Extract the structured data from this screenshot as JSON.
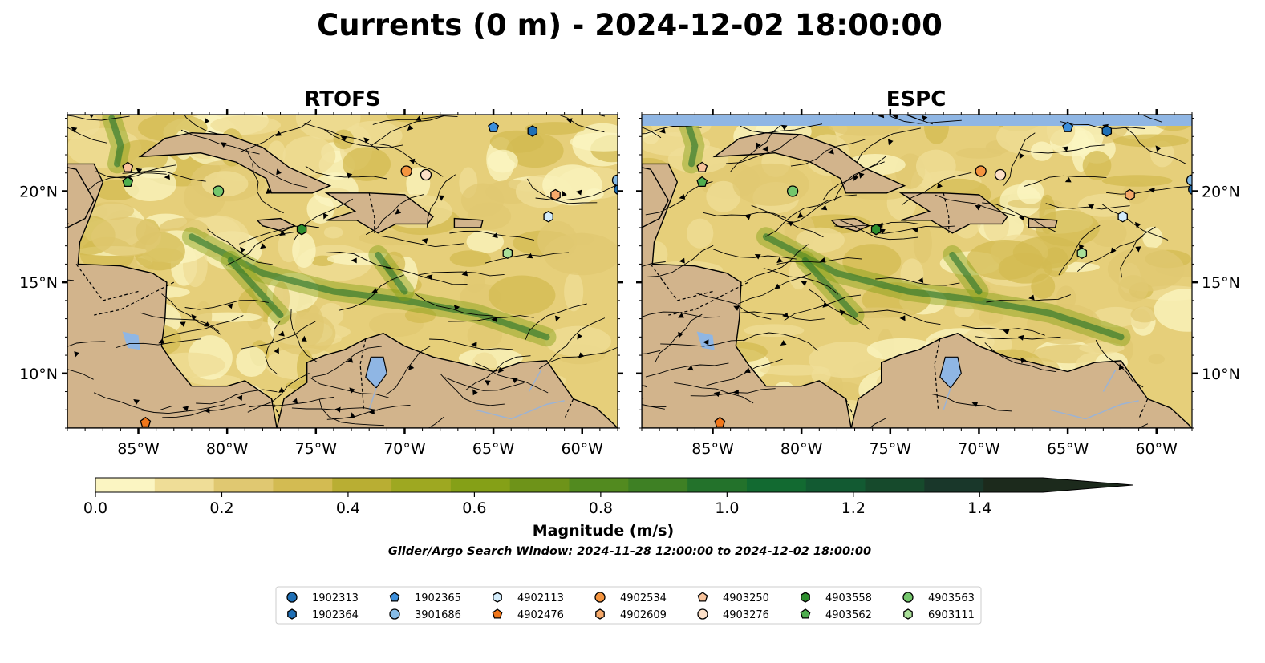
{
  "title": "Currents (0 m) - 2024-12-02 18:00:00",
  "panels": [
    {
      "id": "rtofs",
      "title": "RTOFS",
      "lat_labels_side": "left"
    },
    {
      "id": "espc",
      "title": "ESPC",
      "lat_labels_side": "right"
    }
  ],
  "map_extent": {
    "lon": [
      -89,
      -58
    ],
    "lat": [
      7,
      24.2
    ]
  },
  "lon_ticks": [
    {
      "value": -85,
      "label": "85°W"
    },
    {
      "value": -80,
      "label": "80°W"
    },
    {
      "value": -75,
      "label": "75°W"
    },
    {
      "value": -70,
      "label": "70°W"
    },
    {
      "value": -65,
      "label": "65°W"
    },
    {
      "value": -60,
      "label": "60°W"
    }
  ],
  "lat_ticks": [
    {
      "value": 10,
      "label": "10°N"
    },
    {
      "value": 15,
      "label": "15°N"
    },
    {
      "value": 20,
      "label": "20°N"
    }
  ],
  "colorbar": {
    "label": "Magnitude (m/s)",
    "min": 0.0,
    "max": 1.5,
    "extend": "max",
    "tick_values": [
      0.0,
      0.2,
      0.4,
      0.6,
      0.8,
      1.0,
      1.2,
      1.4
    ],
    "tick_labels": [
      "0.0",
      "0.2",
      "0.4",
      "0.6",
      "0.8",
      "1.0",
      "1.2",
      "1.4"
    ],
    "colors": [
      "#fbf5c2",
      "#efdd97",
      "#e0c871",
      "#d3bb52",
      "#b9ae33",
      "#9ea821",
      "#85a017",
      "#6e9319",
      "#528a1f",
      "#3e8024",
      "#23722b",
      "#126a31",
      "#125a32",
      "#164a2c",
      "#19372a",
      "#1c2a1c"
    ]
  },
  "search_window_text": "Glider/Argo Search Window: 2024-11-28 12:00:00 to 2024-12-02 18:00:00",
  "colors": {
    "land": "#d2b48c",
    "water_outside_model": "#8fb6e4",
    "lake": "#8fb6e4",
    "river": "#9cb3d4",
    "ocean_base": "#e6cf7a"
  },
  "floats": [
    {
      "id": "1902313",
      "marker": "circle",
      "color": "#1f6fb5",
      "lon": -57.9,
      "lat": 20.1
    },
    {
      "id": "1902364",
      "marker": "hexagon",
      "color": "#1f6fb5",
      "lon": -62.8,
      "lat": 23.3
    },
    {
      "id": "1902365",
      "marker": "pentagon",
      "color": "#3c8fdc",
      "lon": -65.0,
      "lat": 23.5
    },
    {
      "id": "3901686",
      "marker": "circle",
      "color": "#86bbe6",
      "lon": -58.0,
      "lat": 20.6
    },
    {
      "id": "4902113",
      "marker": "hexagon",
      "color": "#d3ecfb",
      "lon": -61.9,
      "lat": 18.6
    },
    {
      "id": "4902476",
      "marker": "pentagon",
      "color": "#f0761a",
      "lon": -84.6,
      "lat": 7.3
    },
    {
      "id": "4902534",
      "marker": "circle",
      "color": "#f4943f",
      "lon": -69.9,
      "lat": 21.1
    },
    {
      "id": "4902609",
      "marker": "hexagon",
      "color": "#f6a96a",
      "lon": -61.5,
      "lat": 19.8
    },
    {
      "id": "4903250",
      "marker": "pentagon",
      "color": "#f8c39b",
      "lon": -85.6,
      "lat": 21.3
    },
    {
      "id": "4903276",
      "marker": "circle",
      "color": "#fde0c8",
      "lon": -68.8,
      "lat": 20.9
    },
    {
      "id": "4903558",
      "marker": "hexagon",
      "color": "#2e8f2e",
      "lon": -75.8,
      "lat": 17.9
    },
    {
      "id": "4903562",
      "marker": "pentagon",
      "color": "#4fae4f",
      "lon": -85.6,
      "lat": 20.5
    },
    {
      "id": "4903563",
      "marker": "circle",
      "color": "#74c66c",
      "lon": -80.5,
      "lat": 20.0
    },
    {
      "id": "6903111",
      "marker": "hexagon",
      "color": "#a9df98",
      "lon": -64.2,
      "lat": 16.6
    }
  ],
  "legend": {
    "items": [
      {
        "id": "1902313",
        "marker": "circle",
        "color": "#1f6fb5"
      },
      {
        "id": "1902364",
        "marker": "hexagon",
        "color": "#1f6fb5"
      },
      {
        "id": "1902365",
        "marker": "pentagon",
        "color": "#3c8fdc"
      },
      {
        "id": "3901686",
        "marker": "circle",
        "color": "#86bbe6"
      },
      {
        "id": "4902113",
        "marker": "hexagon",
        "color": "#d3ecfb"
      },
      {
        "id": "4902476",
        "marker": "pentagon",
        "color": "#f0761a"
      },
      {
        "id": "4902534",
        "marker": "circle",
        "color": "#f4943f"
      },
      {
        "id": "4902609",
        "marker": "hexagon",
        "color": "#f6a96a"
      },
      {
        "id": "4903250",
        "marker": "pentagon",
        "color": "#f8c39b"
      },
      {
        "id": "4903276",
        "marker": "circle",
        "color": "#fde0c8"
      },
      {
        "id": "4903558",
        "marker": "hexagon",
        "color": "#2e8f2e"
      },
      {
        "id": "4903562",
        "marker": "pentagon",
        "color": "#4fae4f"
      },
      {
        "id": "4903563",
        "marker": "circle",
        "color": "#74c66c"
      },
      {
        "id": "6903111",
        "marker": "hexagon",
        "color": "#a9df98"
      }
    ]
  }
}
